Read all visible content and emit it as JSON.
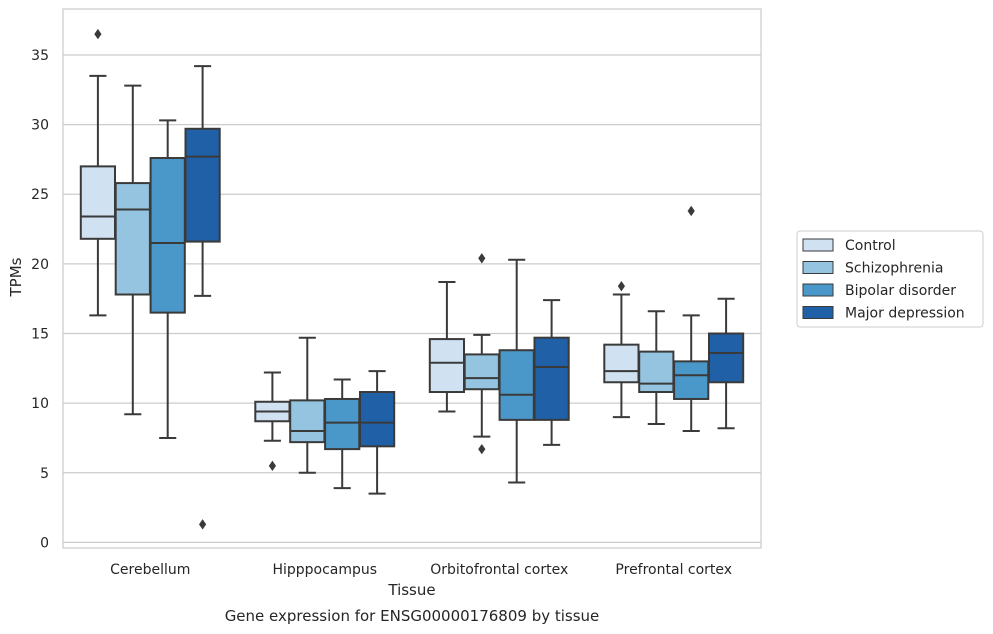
{
  "caption": "Gene expression for ENSG00000176809 by tissue",
  "chart_data": {
    "type": "box",
    "xlabel": "Tissue",
    "ylabel": "TPMs",
    "ylim": [
      -0.4,
      38.3
    ],
    "yticks": [
      0,
      5,
      10,
      15,
      20,
      25,
      30,
      35
    ],
    "grid": "horizontal",
    "legend_position": "right",
    "categories": [
      "Cerebellum",
      "Hipppocampus",
      "Orbitofrontal cortex",
      "Prefrontal cortex"
    ],
    "series": [
      {
        "name": "Control",
        "color": "#d0e1f2",
        "boxes": [
          {
            "whisker_low": 16.3,
            "q1": 21.8,
            "median": 23.4,
            "q3": 27.0,
            "whisker_high": 33.5,
            "outliers": [
              36.5
            ]
          },
          {
            "whisker_low": 7.3,
            "q1": 8.7,
            "median": 9.4,
            "q3": 10.1,
            "whisker_high": 12.2,
            "outliers": [
              5.5
            ]
          },
          {
            "whisker_low": 9.4,
            "q1": 10.8,
            "median": 12.9,
            "q3": 14.6,
            "whisker_high": 18.7,
            "outliers": []
          },
          {
            "whisker_low": 9.0,
            "q1": 11.5,
            "median": 12.3,
            "q3": 14.2,
            "whisker_high": 17.8,
            "outliers": [
              18.4
            ]
          }
        ]
      },
      {
        "name": "Schizophrenia",
        "color": "#94c4df",
        "boxes": [
          {
            "whisker_low": 9.2,
            "q1": 17.8,
            "median": 23.9,
            "q3": 25.8,
            "whisker_high": 32.8,
            "outliers": []
          },
          {
            "whisker_low": 5.0,
            "q1": 7.2,
            "median": 8.0,
            "q3": 10.2,
            "whisker_high": 14.7,
            "outliers": []
          },
          {
            "whisker_low": 7.6,
            "q1": 11.0,
            "median": 11.8,
            "q3": 13.5,
            "whisker_high": 14.9,
            "outliers": [
              20.4,
              6.7
            ]
          },
          {
            "whisker_low": 8.5,
            "q1": 10.8,
            "median": 11.4,
            "q3": 13.7,
            "whisker_high": 16.6,
            "outliers": []
          }
        ]
      },
      {
        "name": "Bipolar disorder",
        "color": "#4a98c9",
        "boxes": [
          {
            "whisker_low": 7.5,
            "q1": 16.5,
            "median": 21.5,
            "q3": 27.6,
            "whisker_high": 30.3,
            "outliers": []
          },
          {
            "whisker_low": 3.9,
            "q1": 6.7,
            "median": 8.6,
            "q3": 10.3,
            "whisker_high": 11.7,
            "outliers": []
          },
          {
            "whisker_low": 4.3,
            "q1": 8.8,
            "median": 10.6,
            "q3": 13.8,
            "whisker_high": 20.3,
            "outliers": []
          },
          {
            "whisker_low": 8.0,
            "q1": 10.3,
            "median": 12.0,
            "q3": 13.0,
            "whisker_high": 16.3,
            "outliers": [
              23.8
            ]
          }
        ]
      },
      {
        "name": "Major depression",
        "color": "#2060a7",
        "boxes": [
          {
            "whisker_low": 17.7,
            "q1": 21.6,
            "median": 27.7,
            "q3": 29.7,
            "whisker_high": 34.2,
            "outliers": [
              1.3
            ]
          },
          {
            "whisker_low": 3.5,
            "q1": 6.9,
            "median": 8.6,
            "q3": 10.8,
            "whisker_high": 12.3,
            "outliers": []
          },
          {
            "whisker_low": 7.0,
            "q1": 8.8,
            "median": 12.6,
            "q3": 14.7,
            "whisker_high": 17.4,
            "outliers": []
          },
          {
            "whisker_low": 8.2,
            "q1": 11.5,
            "median": 13.6,
            "q3": 15.0,
            "whisker_high": 17.5,
            "outliers": []
          }
        ]
      }
    ]
  }
}
